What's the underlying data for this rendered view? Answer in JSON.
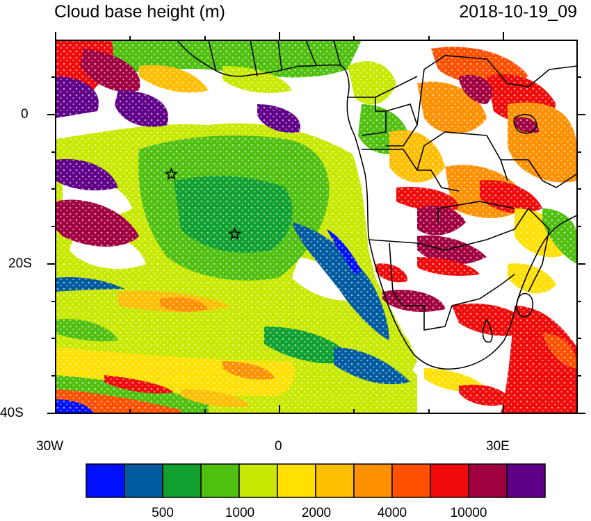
{
  "title": "Cloud base height (m)",
  "datetime": "2018-10-19_09",
  "axes": {
    "x_ticks": [
      "30W",
      "0",
      "30E"
    ],
    "y_ticks": [
      "0",
      "20S",
      "40S"
    ]
  },
  "colorbar": {
    "colors": [
      "#0010ff",
      "#005aa0",
      "#10a030",
      "#50c010",
      "#c8e800",
      "#ffe000",
      "#ffbe00",
      "#ff9000",
      "#ff5000",
      "#f00a0a",
      "#a00040",
      "#600088"
    ],
    "labels": [
      "500",
      "1000",
      "2000",
      "4000",
      "10000"
    ]
  },
  "markers": [
    {
      "name": "star-marker-1",
      "lon": -14.5,
      "lat": -8
    },
    {
      "name": "star-marker-2",
      "lon": -6,
      "lat": -16
    }
  ]
}
